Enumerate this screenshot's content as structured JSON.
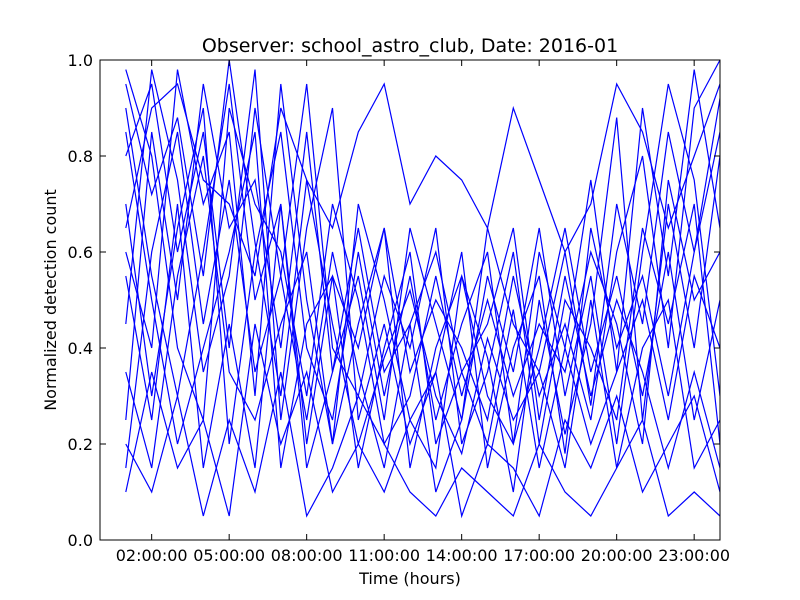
{
  "chart_data": {
    "type": "line",
    "title": "Observer: school_astro_club, Date: 2016-01",
    "xlabel": "Time (hours)",
    "ylabel": "Normalized detection count",
    "xlim": [
      "00:00:00",
      "24:00:00"
    ],
    "ylim": [
      0.0,
      1.0
    ],
    "x_ticks": [
      "02:00:00",
      "05:00:00",
      "08:00:00",
      "11:00:00",
      "14:00:00",
      "17:00:00",
      "20:00:00",
      "23:00:00"
    ],
    "y_ticks": [
      "0.0",
      "0.2",
      "0.4",
      "0.6",
      "0.8",
      "1.0"
    ],
    "grid": false,
    "legend": "none",
    "line_color": "#0000ff",
    "x": [
      "01:00:00",
      "02:00:00",
      "03:00:00",
      "04:00:00",
      "05:00:00",
      "06:00:00",
      "07:00:00",
      "08:00:00",
      "09:00:00",
      "10:00:00",
      "11:00:00",
      "12:00:00",
      "13:00:00",
      "14:00:00",
      "15:00:00",
      "16:00:00",
      "17:00:00",
      "18:00:00",
      "19:00:00",
      "20:00:00",
      "21:00:00",
      "22:00:00",
      "23:00:00",
      "24:00:00"
    ],
    "series": [
      {
        "values": [
          0.95,
          0.72,
          0.88,
          0.55,
          1.0,
          0.62,
          0.3,
          0.75,
          0.45,
          0.2,
          0.38,
          0.52,
          0.3,
          0.18,
          0.42,
          0.25,
          0.35,
          0.6,
          0.28,
          0.7,
          0.45,
          0.85,
          0.6,
          0.92
        ]
      },
      {
        "values": [
          0.8,
          0.95,
          0.6,
          0.85,
          0.4,
          0.9,
          0.55,
          0.25,
          0.6,
          0.35,
          0.15,
          0.45,
          0.6,
          0.35,
          0.2,
          0.48,
          0.15,
          0.4,
          0.75,
          0.35,
          0.9,
          0.55,
          0.98,
          0.65
        ]
      },
      {
        "values": [
          0.6,
          0.4,
          0.98,
          0.7,
          0.85,
          0.3,
          0.95,
          0.5,
          0.2,
          0.7,
          0.5,
          0.25,
          0.15,
          0.55,
          0.38,
          0.1,
          0.5,
          0.22,
          0.45,
          0.88,
          0.25,
          0.7,
          0.4,
          0.8
        ]
      },
      {
        "values": [
          0.25,
          0.85,
          0.5,
          0.95,
          0.65,
          0.75,
          0.4,
          0.85,
          0.35,
          0.55,
          0.25,
          0.65,
          0.45,
          0.25,
          0.55,
          0.35,
          0.65,
          0.3,
          0.55,
          0.2,
          0.6,
          0.95,
          0.75,
          0.3
        ]
      },
      {
        "values": [
          0.9,
          0.55,
          0.3,
          0.6,
          0.95,
          0.5,
          0.7,
          0.2,
          0.55,
          0.4,
          0.65,
          0.35,
          0.5,
          0.4,
          0.25,
          0.55,
          0.3,
          0.45,
          0.25,
          0.6,
          0.8,
          0.4,
          0.9,
          1.0
        ]
      },
      {
        "values": [
          0.45,
          0.98,
          0.75,
          0.35,
          0.55,
          0.98,
          0.25,
          0.65,
          0.9,
          0.25,
          0.45,
          0.2,
          0.35,
          0.6,
          0.15,
          0.4,
          0.55,
          0.18,
          0.65,
          0.4,
          0.55,
          0.3,
          0.6,
          0.85
        ]
      },
      {
        "values": [
          0.7,
          0.3,
          0.65,
          0.9,
          0.2,
          0.6,
          0.85,
          0.4,
          0.25,
          0.6,
          0.3,
          0.55,
          0.25,
          0.45,
          0.6,
          0.2,
          0.4,
          0.65,
          0.35,
          0.55,
          0.3,
          0.6,
          0.25,
          0.5
        ]
      },
      {
        "values": [
          0.15,
          0.6,
          0.85,
          0.45,
          0.75,
          0.35,
          0.55,
          0.95,
          0.4,
          0.3,
          0.55,
          0.4,
          0.65,
          0.2,
          0.35,
          0.6,
          0.2,
          0.5,
          0.4,
          0.25,
          0.65,
          0.45,
          0.7,
          0.2
        ]
      },
      {
        "values": [
          0.98,
          0.8,
          0.4,
          0.25,
          0.9,
          0.7,
          0.6,
          0.3,
          0.7,
          0.5,
          0.2,
          0.3,
          0.55,
          0.3,
          0.5,
          0.3,
          0.45,
          0.35,
          0.6,
          0.45,
          0.2,
          0.75,
          0.5,
          0.6
        ]
      },
      {
        "values": [
          0.35,
          0.15,
          0.55,
          0.8,
          0.35,
          0.25,
          0.45,
          0.6,
          0.2,
          0.45,
          0.65,
          0.15,
          0.4,
          0.55,
          0.3,
          0.2,
          0.6,
          0.4,
          0.2,
          0.35,
          0.5,
          0.25,
          0.55,
          0.4
        ]
      },
      {
        "values": [
          0.85,
          0.5,
          0.2,
          0.4,
          0.6,
          0.85,
          0.15,
          0.45,
          0.55,
          0.15,
          0.4,
          0.6,
          0.2,
          0.35,
          0.45,
          0.65,
          0.25,
          0.55,
          0.3,
          0.5,
          0.35,
          0.15,
          0.35,
          0.15
        ]
      },
      {
        "values": [
          0.55,
          0.25,
          0.7,
          0.15,
          0.45,
          0.15,
          0.7,
          0.15,
          0.35,
          0.65,
          0.35,
          0.45,
          0.1,
          0.25,
          0.65,
          0.45,
          0.35,
          0.15,
          0.5,
          0.15,
          0.4,
          0.5,
          0.15,
          0.25
        ]
      },
      {
        "values": [
          0.1,
          0.35,
          0.15,
          0.25,
          0.05,
          0.45,
          0.2,
          0.35,
          0.1,
          0.2,
          0.1,
          0.25,
          0.35,
          0.05,
          0.2,
          0.15,
          0.05,
          0.25,
          0.15,
          0.3,
          0.1,
          0.2,
          0.3,
          0.1
        ]
      },
      {
        "values": [
          0.65,
          0.9,
          0.95,
          0.75,
          0.7,
          0.55,
          0.9,
          0.75,
          0.65,
          0.85,
          0.95,
          0.7,
          0.8,
          0.75,
          0.65,
          0.9,
          0.75,
          0.6,
          0.7,
          0.95,
          0.85,
          0.65,
          0.8,
          0.95
        ]
      },
      {
        "values": [
          0.2,
          0.1,
          0.3,
          0.05,
          0.25,
          0.1,
          0.35,
          0.05,
          0.15,
          0.3,
          0.2,
          0.1,
          0.05,
          0.15,
          0.1,
          0.05,
          0.2,
          0.1,
          0.05,
          0.15,
          0.25,
          0.05,
          0.1,
          0.05
        ]
      }
    ]
  }
}
